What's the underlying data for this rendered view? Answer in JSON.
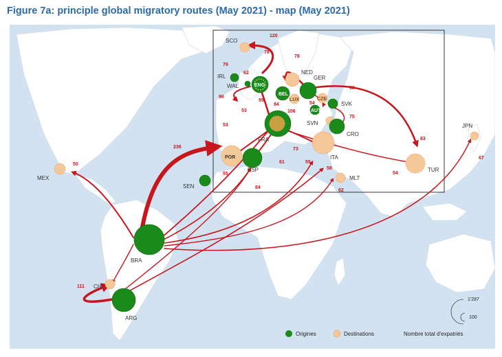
{
  "title": "Figure 7a: principle global migratory routes (May 2021) - map (May 2021)",
  "colors": {
    "origin": "#1a8a1a",
    "destination": "#f5c89a",
    "arrow": "#c8161d",
    "water": "#d3e2f1",
    "land": "#ffffff"
  },
  "countries": [
    {
      "code": "SCO",
      "role": "origin"
    },
    {
      "code": "IRL",
      "role": "origin"
    },
    {
      "code": "WAL",
      "role": "origin"
    },
    {
      "code": "ENG",
      "role": "both"
    },
    {
      "code": "NED",
      "role": "destination"
    },
    {
      "code": "BEL",
      "role": "both"
    },
    {
      "code": "LUX",
      "role": "destination"
    },
    {
      "code": "GER",
      "role": "origin"
    },
    {
      "code": "CZE",
      "role": "destination"
    },
    {
      "code": "AUT",
      "role": "origin"
    },
    {
      "code": "SVK",
      "role": "origin"
    },
    {
      "code": "SVN",
      "role": "destination"
    },
    {
      "code": "CRO",
      "role": "origin"
    },
    {
      "code": "FRA",
      "role": "both"
    },
    {
      "code": "POR",
      "role": "destination"
    },
    {
      "code": "ESP",
      "role": "origin"
    },
    {
      "code": "ITA",
      "role": "destination"
    },
    {
      "code": "MLT",
      "role": "destination"
    },
    {
      "code": "TUR",
      "role": "destination"
    },
    {
      "code": "JPN",
      "role": "destination"
    },
    {
      "code": "SEN",
      "role": "origin"
    },
    {
      "code": "MEX",
      "role": "destination"
    },
    {
      "code": "BRA",
      "role": "origin"
    },
    {
      "code": "CHI",
      "role": "destination"
    },
    {
      "code": "ARG",
      "role": "origin"
    }
  ],
  "flow_values": [
    "120",
    "78",
    "79",
    "78",
    "62",
    "96",
    "95",
    "84",
    "53",
    "58",
    "106",
    "54",
    "75",
    "53",
    "236",
    "73",
    "61",
    "55",
    "55",
    "58",
    "84",
    "62",
    "83",
    "54",
    "67",
    "50",
    "111"
  ],
  "legend": {
    "origins_label": "Origines",
    "destinations_label": "Destinations",
    "total_label": "Nombre total d'expatriés",
    "scale_max": "1'287",
    "scale_min": "100"
  }
}
